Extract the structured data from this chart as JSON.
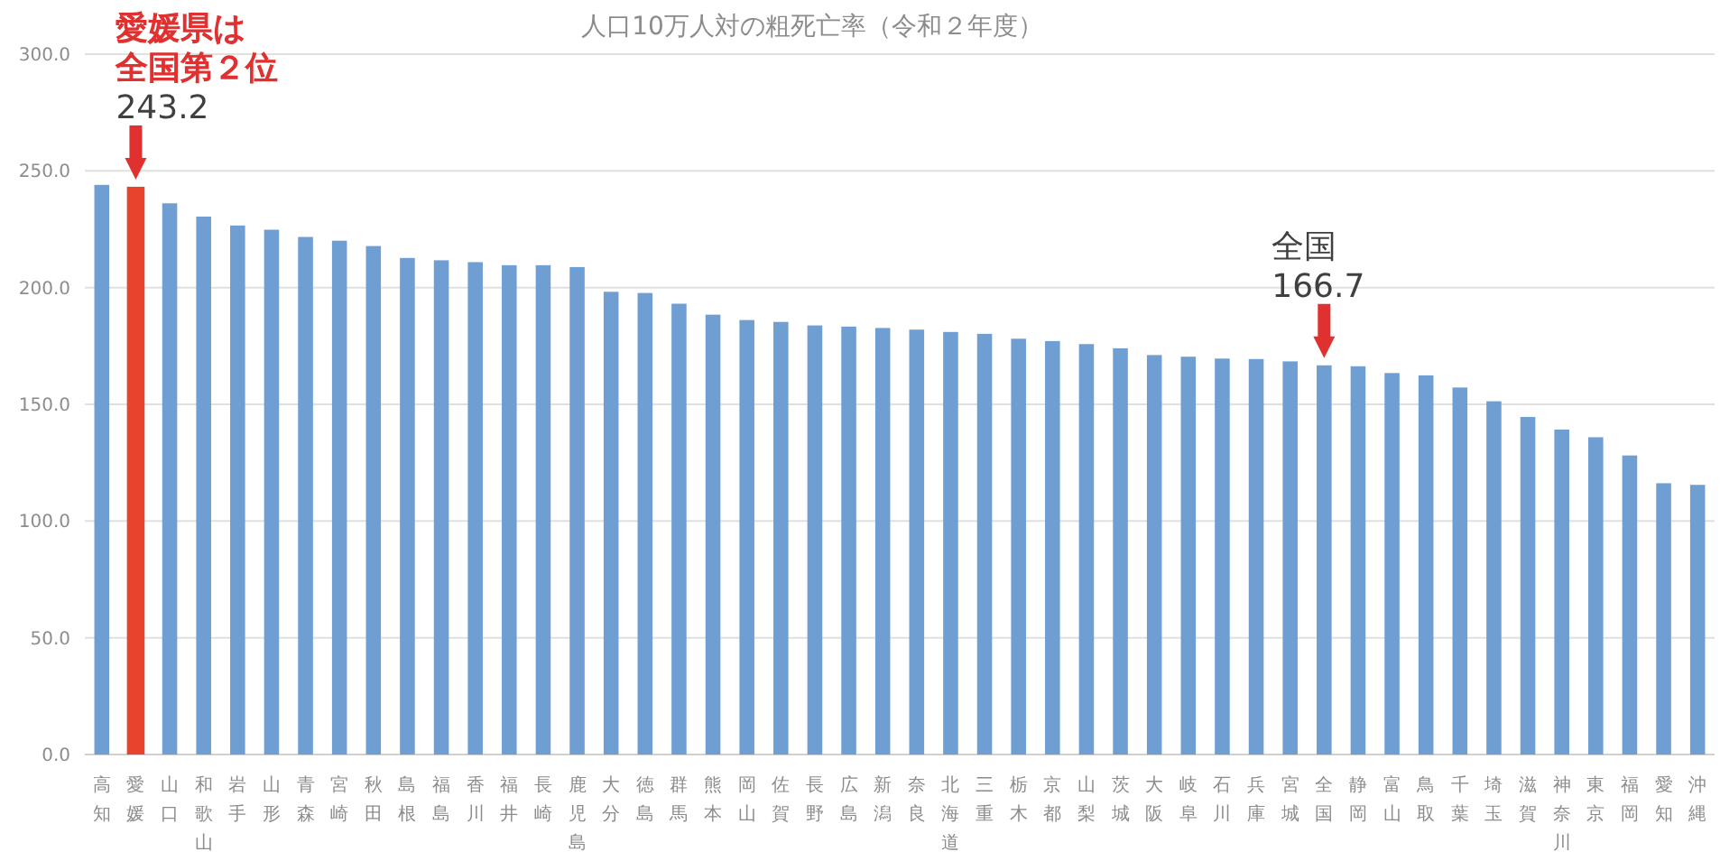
{
  "chart_data": {
    "type": "bar",
    "title": "人口10万人対の粗死亡率（令和２年度）",
    "categories": [
      "高知",
      "愛媛",
      "山口",
      "和歌山",
      "岩手",
      "山形",
      "青森",
      "宮崎",
      "秋田",
      "島根",
      "福島",
      "香川",
      "福井",
      "長崎",
      "鹿児島",
      "大分",
      "徳島",
      "群馬",
      "熊本",
      "岡山",
      "佐賀",
      "長野",
      "広島",
      "新潟",
      "奈良",
      "北海道",
      "三重",
      "栃木",
      "京都",
      "山梨",
      "茨城",
      "大阪",
      "岐阜",
      "石川",
      "兵庫",
      "宮城",
      "全国",
      "静岡",
      "富山",
      "鳥取",
      "千葉",
      "埼玉",
      "滋賀",
      "神奈川",
      "東京",
      "福岡",
      "愛知",
      "沖縄"
    ],
    "values": [
      244.0,
      243.2,
      236.1,
      230.4,
      226.6,
      224.8,
      221.7,
      220.1,
      217.8,
      212.7,
      211.7,
      210.9,
      209.6,
      209.6,
      208.8,
      198.2,
      197.7,
      193.1,
      188.4,
      186.1,
      185.3,
      183.8,
      183.3,
      182.7,
      182.0,
      181.0,
      180.2,
      178.1,
      177.1,
      175.8,
      174.0,
      171.1,
      170.4,
      169.6,
      169.4,
      168.4,
      166.7,
      166.3,
      163.4,
      162.4,
      157.2,
      151.3,
      144.6,
      139.2,
      135.9,
      128.1,
      116.2,
      115.5
    ],
    "colors": [
      "#6f9ed3",
      "#e8432d",
      "#6f9ed3",
      "#6f9ed3",
      "#6f9ed3",
      "#6f9ed3",
      "#6f9ed3",
      "#6f9ed3",
      "#6f9ed3",
      "#6f9ed3",
      "#6f9ed3",
      "#6f9ed3",
      "#6f9ed3",
      "#6f9ed3",
      "#6f9ed3",
      "#6f9ed3",
      "#6f9ed3",
      "#6f9ed3",
      "#6f9ed3",
      "#6f9ed3",
      "#6f9ed3",
      "#6f9ed3",
      "#6f9ed3",
      "#6f9ed3",
      "#6f9ed3",
      "#6f9ed3",
      "#6f9ed3",
      "#6f9ed3",
      "#6f9ed3",
      "#6f9ed3",
      "#6f9ed3",
      "#6f9ed3",
      "#6f9ed3",
      "#6f9ed3",
      "#6f9ed3",
      "#6f9ed3",
      "#6f9ed3",
      "#6f9ed3",
      "#6f9ed3",
      "#6f9ed3",
      "#6f9ed3",
      "#6f9ed3",
      "#6f9ed3",
      "#6f9ed3",
      "#6f9ed3",
      "#6f9ed3",
      "#6f9ed3",
      "#6f9ed3"
    ],
    "value_labels": [
      null,
      "243.2",
      null,
      null,
      null,
      null,
      null,
      null,
      null,
      null,
      null,
      null,
      null,
      null,
      null,
      null,
      null,
      null,
      null,
      null,
      null,
      null,
      null,
      null,
      null,
      null,
      null,
      null,
      null,
      null,
      null,
      null,
      null,
      null,
      null,
      null,
      "166.7",
      null,
      null,
      null,
      null,
      null,
      null,
      null,
      null,
      null,
      null,
      null
    ],
    "annotations": [
      "愛媛県は",
      "全国第２位",
      "全国"
    ],
    "ylim": [
      0,
      300
    ],
    "yticks": [
      {
        "value": 0,
        "label": "0.0"
      },
      {
        "value": 50,
        "label": "50.0"
      },
      {
        "value": 100,
        "label": "100.0"
      },
      {
        "value": 150,
        "label": "150.0"
      },
      {
        "value": 200,
        "label": "200.0"
      },
      {
        "value": 250,
        "label": "250.0"
      },
      {
        "value": 300,
        "label": "300.0"
      }
    ],
    "grid": "y"
  }
}
